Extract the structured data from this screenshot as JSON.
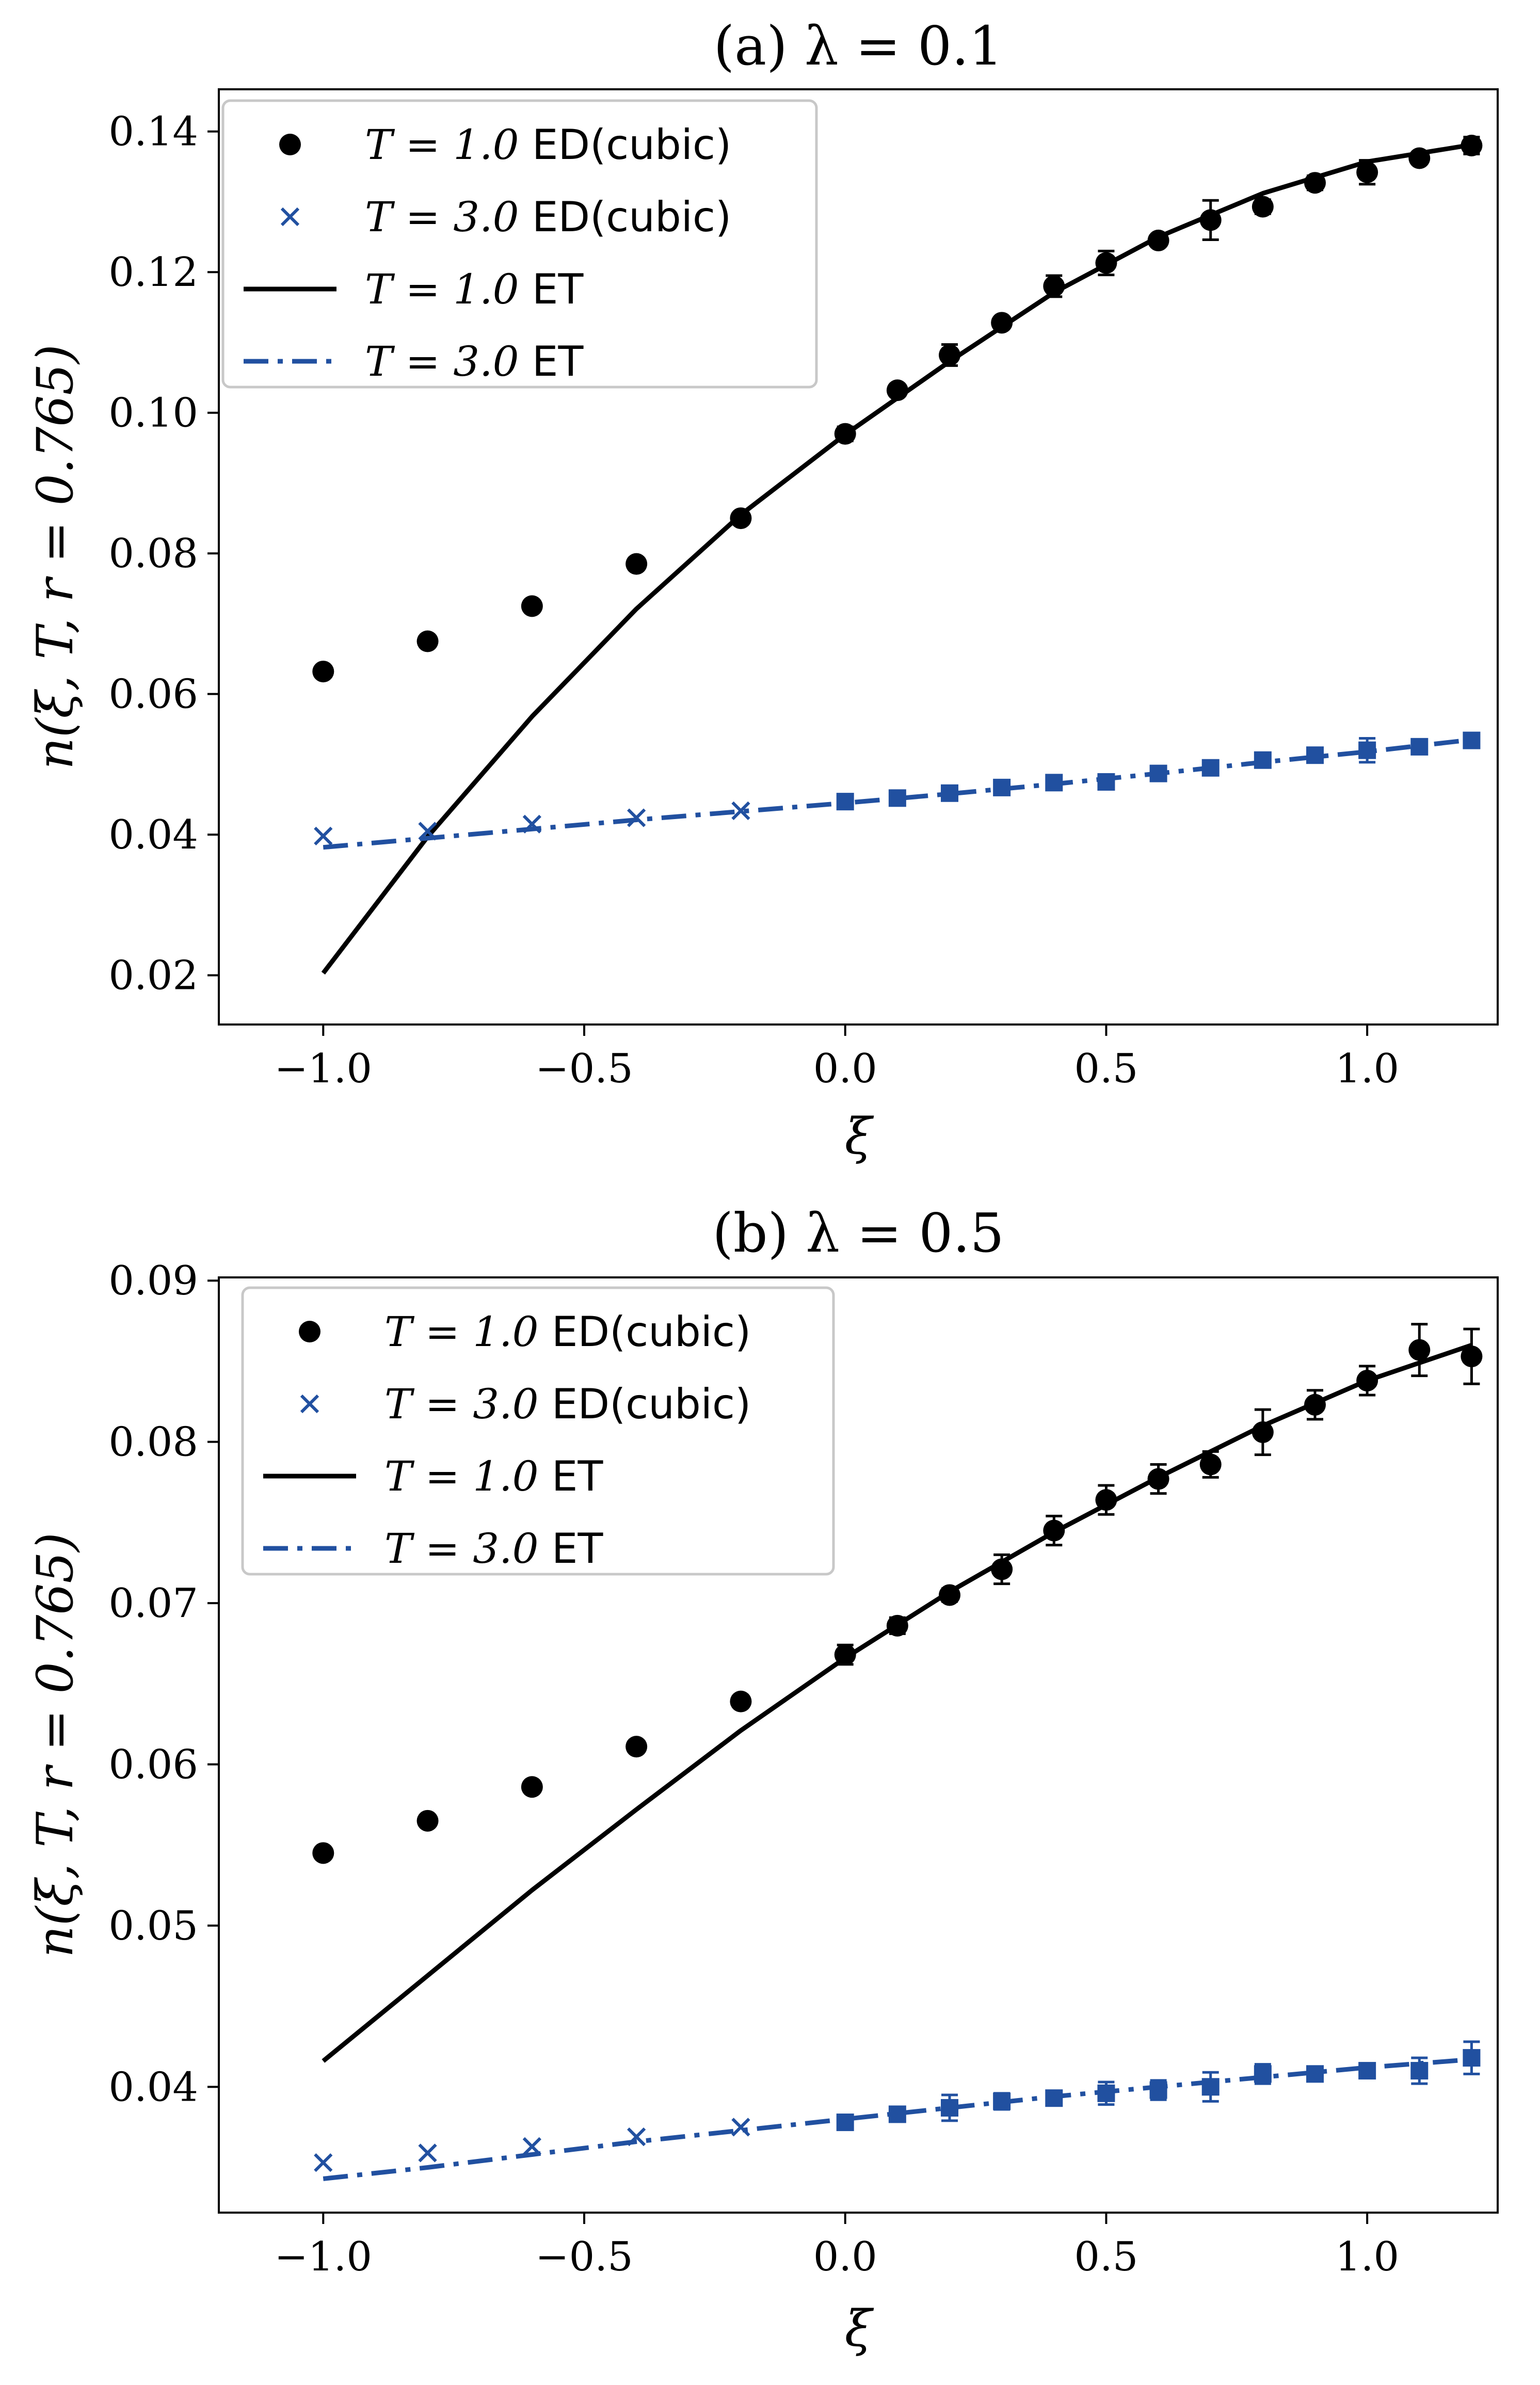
{
  "colors": {
    "black_series": "#000000",
    "blue_series": "#2150A0"
  },
  "chart_data": [
    {
      "type": "line",
      "title": "(a) λ = 0.1",
      "xlabel": "ξ",
      "ylabel": "n(ξ, T, r = 0.765)",
      "xlim": [
        -1.2,
        1.25
      ],
      "ylim": [
        0.013,
        0.146
      ],
      "xticks": [
        -1.0,
        -0.5,
        0.0,
        0.5,
        1.0
      ],
      "xtick_labels": [
        "−1.0",
        "−0.5",
        "0.0",
        "0.5",
        "1.0"
      ],
      "yticks": [
        0.02,
        0.04,
        0.06,
        0.08,
        0.1,
        0.12,
        0.14
      ],
      "ytick_labels": [
        "0.02",
        "0.04",
        "0.06",
        "0.08",
        "0.10",
        "0.12",
        "0.14"
      ],
      "legend_position": "top-left",
      "series": [
        {
          "name": "T = 1.0 ED(cubic)",
          "label_math": "T = 1.0",
          "label_text": "ED(cubic)",
          "kind": "scatter-dot",
          "color": "#000000",
          "x": [
            -1.0,
            -0.8,
            -0.6,
            -0.4,
            -0.2,
            0.0,
            0.1,
            0.2,
            0.3,
            0.4,
            0.5,
            0.6,
            0.7,
            0.8,
            0.9,
            1.0,
            1.1,
            1.2
          ],
          "y": [
            0.0632,
            0.0675,
            0.0725,
            0.0785,
            0.085,
            0.097,
            0.1032,
            0.1082,
            0.1128,
            0.118,
            0.1213,
            0.1245,
            0.1274,
            0.1293,
            0.1327,
            0.1342,
            0.1362,
            0.138
          ],
          "err": [
            0,
            0,
            0,
            0,
            0,
            0.001,
            0.0008,
            0.0015,
            0.0008,
            0.0015,
            0.0017,
            0.0008,
            0.0028,
            0.001,
            0.001,
            0.0017,
            0.0008,
            0.0012
          ]
        },
        {
          "name": "T = 3.0 ED(cubic)",
          "label_math": "T = 3.0",
          "label_text": "ED(cubic)",
          "kind": "scatter-x",
          "color": "#2150A0",
          "x": [
            -1.0,
            -0.8,
            -0.6,
            -0.4,
            -0.2,
            0.0,
            0.1,
            0.2,
            0.3,
            0.4,
            0.5,
            0.6,
            0.7,
            0.8,
            0.9,
            1.0,
            1.1,
            1.2
          ],
          "y": [
            0.0398,
            0.0405,
            0.0415,
            0.0424,
            0.0434,
            0.0447,
            0.0452,
            0.0459,
            0.0467,
            0.0474,
            0.0475,
            0.0487,
            0.0495,
            0.0506,
            0.0513,
            0.052,
            0.0525,
            0.0534
          ],
          "err": [
            0,
            0,
            0,
            0,
            0,
            0.0008,
            0.0008,
            0.0008,
            0.0008,
            0.0008,
            0.0008,
            0.0008,
            0.0008,
            0.0008,
            0.0008,
            0.0017,
            0.0008,
            0.0008
          ]
        },
        {
          "name": "T = 1.0 ET",
          "label_math": "T = 1.0",
          "label_text": "ET",
          "kind": "line-solid",
          "color": "#000000",
          "x": [
            -1.0,
            -0.8,
            -0.6,
            -0.4,
            -0.2,
            0.0,
            0.2,
            0.4,
            0.6,
            0.8,
            1.0,
            1.2
          ],
          "y": [
            0.0203,
            0.0397,
            0.0568,
            0.0721,
            0.0855,
            0.0969,
            0.1073,
            0.1171,
            0.125,
            0.1312,
            0.1357,
            0.1381
          ]
        },
        {
          "name": "T = 3.0 ET",
          "label_math": "T = 3.0",
          "label_text": "ET",
          "kind": "line-dashdot",
          "color": "#2150A0",
          "x": [
            -1.0,
            -0.8,
            -0.6,
            -0.4,
            -0.2,
            0.0,
            0.2,
            0.4,
            0.6,
            0.8,
            1.0,
            1.2
          ],
          "y": [
            0.0382,
            0.0395,
            0.0408,
            0.0421,
            0.0433,
            0.0445,
            0.0458,
            0.0472,
            0.0487,
            0.0503,
            0.0518,
            0.0535
          ]
        }
      ]
    },
    {
      "type": "line",
      "title": "(b) λ = 0.5",
      "xlabel": "ξ",
      "ylabel": "n(ξ, T, r = 0.765)",
      "xlim": [
        -1.2,
        1.25
      ],
      "ylim": [
        0.0322,
        0.0902
      ],
      "xticks": [
        -1.0,
        -0.5,
        0.0,
        0.5,
        1.0
      ],
      "xtick_labels": [
        "−1.0",
        "−0.5",
        "0.0",
        "0.5",
        "1.0"
      ],
      "yticks": [
        0.04,
        0.05,
        0.06,
        0.07,
        0.08,
        0.09
      ],
      "ytick_labels": [
        "0.04",
        "0.05",
        "0.06",
        "0.07",
        "0.08",
        "0.09"
      ],
      "legend_position": "top-left",
      "series": [
        {
          "name": "T = 1.0 ED(cubic)",
          "label_math": "T = 1.0",
          "label_text": "ED(cubic)",
          "kind": "scatter-dot",
          "color": "#000000",
          "x": [
            -1.0,
            -0.8,
            -0.6,
            -0.4,
            -0.2,
            0.0,
            0.1,
            0.2,
            0.3,
            0.4,
            0.5,
            0.6,
            0.7,
            0.8,
            0.9,
            1.0,
            1.1,
            1.2
          ],
          "y": [
            0.0545,
            0.0565,
            0.0586,
            0.0611,
            0.0639,
            0.0668,
            0.0686,
            0.0705,
            0.0721,
            0.0745,
            0.0764,
            0.0777,
            0.0786,
            0.0806,
            0.0823,
            0.0838,
            0.0857,
            0.0853
          ],
          "err": [
            0,
            0,
            0,
            0,
            0,
            0.0006,
            0.0005,
            0.0004,
            0.0009,
            0.0009,
            0.0009,
            0.0009,
            0.0008,
            0.0014,
            0.0009,
            0.0009,
            0.0016,
            0.0017
          ]
        },
        {
          "name": "T = 3.0 ED(cubic)",
          "label_math": "T = 3.0",
          "label_text": "ED(cubic)",
          "kind": "scatter-x",
          "color": "#2150A0",
          "x": [
            -1.0,
            -0.8,
            -0.6,
            -0.4,
            -0.2,
            0.0,
            0.1,
            0.2,
            0.3,
            0.4,
            0.5,
            0.6,
            0.7,
            0.8,
            0.9,
            1.0,
            1.1,
            1.2
          ],
          "y": [
            0.0353,
            0.0359,
            0.0363,
            0.0369,
            0.0375,
            0.0378,
            0.0383,
            0.0387,
            0.0391,
            0.0393,
            0.0396,
            0.0398,
            0.04,
            0.0408,
            0.0408,
            0.041,
            0.041,
            0.0418
          ],
          "err": [
            0,
            0,
            0,
            0,
            0,
            0.0004,
            0.0004,
            0.0008,
            0.0005,
            0.0004,
            0.0007,
            0.0006,
            0.0009,
            0.0006,
            0.0004,
            0.0004,
            0.0008,
            0.001
          ]
        },
        {
          "name": "T = 1.0 ET",
          "label_math": "T = 1.0",
          "label_text": "ET",
          "kind": "line-solid",
          "color": "#000000",
          "x": [
            -1.0,
            -0.8,
            -0.6,
            -0.4,
            -0.2,
            0.0,
            0.2,
            0.4,
            0.6,
            0.8,
            1.0,
            1.2
          ],
          "y": [
            0.0416,
            0.0469,
            0.0522,
            0.0572,
            0.0621,
            0.0666,
            0.0707,
            0.0744,
            0.0778,
            0.081,
            0.0838,
            0.086
          ]
        },
        {
          "name": "T = 3.0 ET",
          "label_math": "T = 3.0",
          "label_text": "ET",
          "kind": "line-dashdot",
          "color": "#2150A0",
          "x": [
            -1.0,
            -0.8,
            -0.6,
            -0.4,
            -0.2,
            0.0,
            0.2,
            0.4,
            0.6,
            0.8,
            1.0,
            1.2
          ],
          "y": [
            0.0343,
            0.035,
            0.0358,
            0.0366,
            0.0373,
            0.038,
            0.0387,
            0.0394,
            0.04,
            0.0406,
            0.0412,
            0.0417
          ]
        }
      ]
    }
  ]
}
